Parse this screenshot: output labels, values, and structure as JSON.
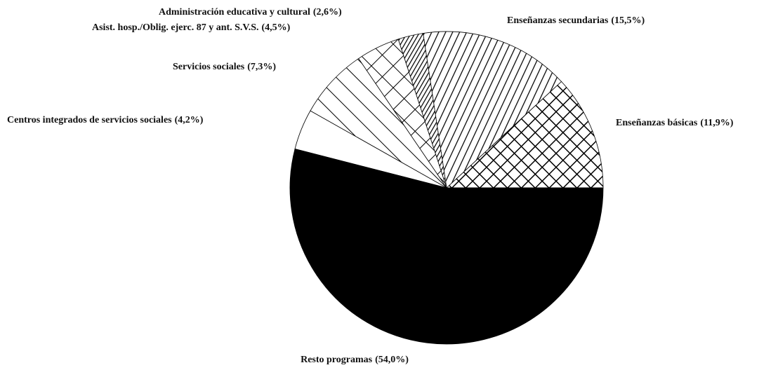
{
  "chart_data": {
    "type": "pie",
    "categories": [
      "Enseñanzas básicas",
      "Enseñanzas secundarias",
      "Administración educativa y cultural",
      "Asist. hosp./Oblig. ejerc. 87 y ant. S.V.S.",
      "Servicios sociales",
      "Centros integrados de servicios sociales",
      "Resto programas"
    ],
    "values": [
      11.9,
      15.5,
      2.6,
      4.5,
      7.3,
      4.2,
      54.0
    ],
    "value_labels": [
      "(11,9%)",
      "(15,5%)",
      "(2,6%)",
      "(4,5%)",
      "(7,3%)",
      "(4,2%)",
      "(54,0%)"
    ],
    "patterns": [
      "crosshatch",
      "diagonal",
      "dense-diagonal",
      "cross",
      "diagonal-wide",
      "none",
      "solid"
    ]
  }
}
